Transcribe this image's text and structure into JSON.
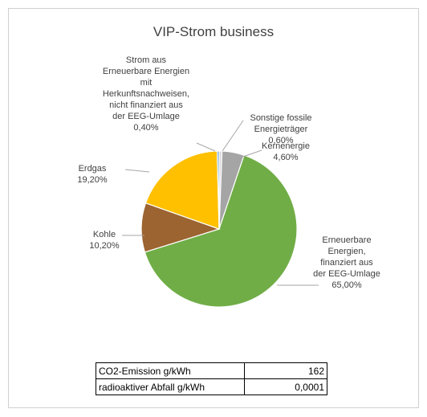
{
  "chart_data": {
    "type": "pie",
    "title": "VIP-Strom business",
    "categories": [
      "Sonstige fossile\nEnergieträger",
      "Kernenergie",
      "Erneuerbare\nEnergien,\nfinanziert aus\nder EEG-Umlage",
      "Kohle",
      "Erdgas",
      "Strom aus\nErneuerbare Energien\nmit\nHerkunftsnachweisen,\nnicht finanziert aus\nder EEG-Umlage"
    ],
    "values": [
      0.6,
      4.6,
      65.0,
      10.2,
      19.2,
      0.4
    ],
    "value_labels": [
      "0,60%",
      "4,60%",
      "65,00%",
      "10,20%",
      "19,20%",
      "0,40%"
    ],
    "colors": [
      "#d9d9d9",
      "#a5a5a5",
      "#70ad47",
      "#9c6430",
      "#ffc000",
      "#5b9bd5"
    ]
  },
  "table": {
    "rows": [
      [
        "CO2-Emission g/kWh",
        "162"
      ],
      [
        "radioaktiver Abfall g/kWh",
        "0,0001"
      ]
    ]
  }
}
